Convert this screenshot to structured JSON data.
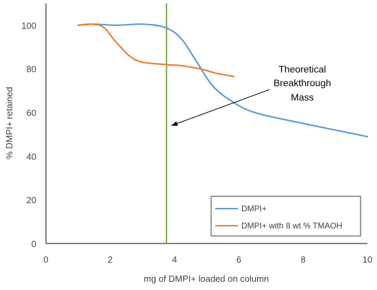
{
  "chart_data": {
    "type": "line",
    "xlabel": "mg of DMPI+ loaded on column",
    "ylabel": "% DMPI+ retained",
    "xlim": [
      0,
      10
    ],
    "ylim": [
      0,
      110
    ],
    "xticks": [
      0,
      2,
      4,
      6,
      8,
      10
    ],
    "yticks": [
      0,
      20,
      40,
      60,
      80,
      100
    ],
    "grid": false,
    "legend_position": "bottom-right",
    "series": [
      {
        "name": "DMPI+",
        "color": "#5b9bd5",
        "x": [
          1.0,
          1.5,
          2.2,
          3.0,
          3.7,
          4.2,
          4.7,
          5.2,
          5.8,
          6.5,
          8.0,
          10.0
        ],
        "y": [
          100,
          100.5,
          100,
          100.5,
          99,
          94,
          83,
          72,
          65,
          60,
          55,
          49
        ]
      },
      {
        "name": "DMPI+ with 8 wt % TMAOH",
        "color": "#ed7d31",
        "x": [
          1.0,
          1.4,
          1.8,
          2.2,
          2.8,
          3.7,
          4.2,
          4.8,
          5.3,
          5.85
        ],
        "y": [
          100,
          100.5,
          99,
          92,
          84,
          82,
          81.5,
          80,
          78,
          76.5
        ]
      }
    ],
    "vertical_line": {
      "x": 3.75,
      "color": "#70ad47"
    },
    "annotation": {
      "lines": [
        "Theoretical",
        "Breakthrough",
        "Mass"
      ],
      "arrow_target": {
        "x": 3.9,
        "y": 54
      }
    }
  }
}
